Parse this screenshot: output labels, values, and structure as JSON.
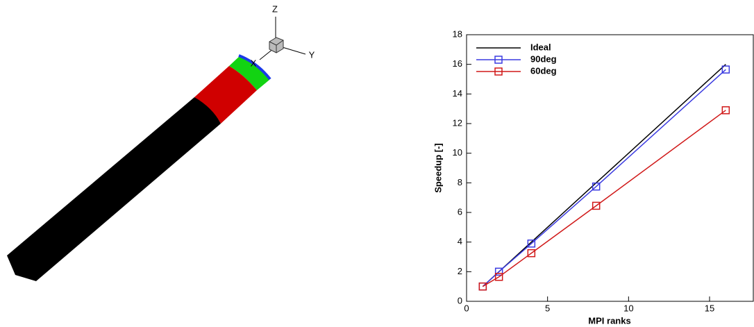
{
  "triad": {
    "x": "X",
    "y": "Y",
    "z": "Z"
  },
  "chart_data": {
    "type": "line",
    "xlabel": "MPI ranks",
    "ylabel": "Speedup [-]",
    "x": [
      1,
      2,
      4,
      8,
      16
    ],
    "series": [
      {
        "name": "Ideal",
        "color": "#000000",
        "values": [
          1,
          2,
          4,
          8,
          16
        ]
      },
      {
        "name": "90deg",
        "color": "#3a3ae0",
        "marker": "square",
        "values": [
          1,
          2,
          3.9,
          7.75,
          15.65
        ]
      },
      {
        "name": "60deg",
        "color": "#d01818",
        "marker": "square",
        "values": [
          1,
          1.65,
          3.25,
          6.45,
          12.9
        ]
      }
    ],
    "xlim": [
      0,
      17.7
    ],
    "xticks": [
      0,
      5,
      10,
      15
    ],
    "ylim": [
      0,
      18
    ],
    "yticks": [
      0,
      2,
      4,
      6,
      8,
      10,
      12,
      14,
      16,
      18
    ],
    "legend": "upper left"
  }
}
